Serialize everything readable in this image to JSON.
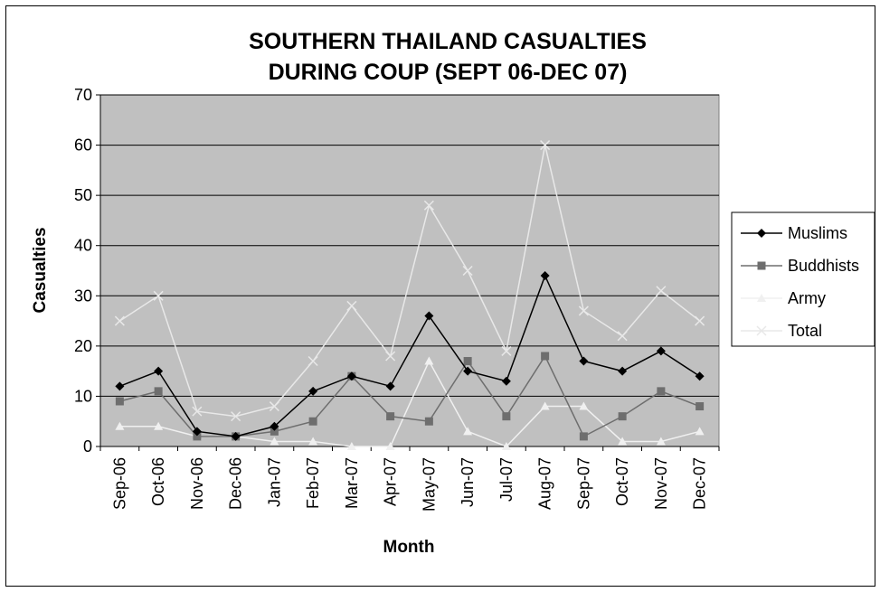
{
  "chart_data": {
    "type": "line",
    "title_lines": [
      "SOUTHERN THAILAND CASUALTIES",
      "DURING COUP (SEPT 06-DEC 07)"
    ],
    "xlabel": "Month",
    "ylabel": "Casualties",
    "ylim": [
      0,
      70
    ],
    "yticks": [
      0,
      10,
      20,
      30,
      40,
      50,
      60,
      70
    ],
    "grid": true,
    "legend_position": "right",
    "plot_background": "#c0c0c0",
    "categories": [
      "Sep-06",
      "Oct-06",
      "Nov-06",
      "Dec-06",
      "Jan-07",
      "Feb-07",
      "Mar-07",
      "Apr-07",
      "May-07",
      "Jun-07",
      "Jul-07",
      "Aug-07",
      "Sep-07",
      "Oct-07",
      "Nov-07",
      "Dec-07"
    ],
    "series": [
      {
        "name": "Muslims",
        "color": "#000000",
        "marker": "diamond",
        "values": [
          12,
          15,
          3,
          2,
          4,
          11,
          14,
          12,
          26,
          15,
          13,
          34,
          17,
          15,
          19,
          14
        ]
      },
      {
        "name": "Buddhists",
        "color": "#6e6e6e",
        "marker": "square",
        "values": [
          9,
          11,
          2,
          2,
          3,
          5,
          14,
          6,
          5,
          17,
          6,
          18,
          2,
          6,
          11,
          8
        ]
      },
      {
        "name": "Army",
        "color": "#f0f0f0",
        "marker": "triangle",
        "values": [
          4,
          4,
          2,
          2,
          1,
          1,
          0,
          0,
          17,
          3,
          0,
          8,
          8,
          1,
          1,
          3
        ]
      },
      {
        "name": "Total",
        "color": "#e8e8e8",
        "marker": "x",
        "values": [
          25,
          30,
          7,
          6,
          8,
          17,
          28,
          18,
          48,
          35,
          19,
          60,
          27,
          22,
          31,
          25
        ]
      }
    ]
  }
}
